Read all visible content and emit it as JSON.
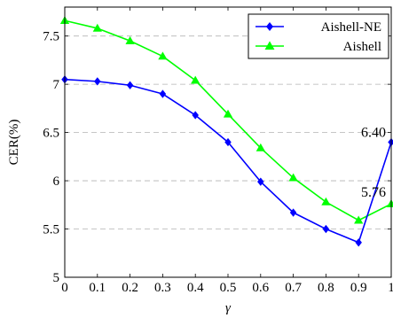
{
  "chart_data": {
    "type": "line",
    "x": [
      0,
      0.1,
      0.2,
      0.3,
      0.4,
      0.5,
      0.6,
      0.7,
      0.8,
      0.9,
      1
    ],
    "xlabel": "γ",
    "ylabel": "CER(%)",
    "xlim": [
      0,
      1
    ],
    "ylim": [
      5,
      7.8
    ],
    "xticks": [
      "0",
      "0.1",
      "0.2",
      "0.3",
      "0.4",
      "0.5",
      "0.6",
      "0.7",
      "0.8",
      "0.9",
      "1"
    ],
    "yticks": [
      "5",
      "5.5",
      "6",
      "6.5",
      "7",
      "7.5"
    ],
    "grid": "horizontal dashed",
    "legend_position": "top-right",
    "series": [
      {
        "name": "Aishell-NE",
        "color": "#0000ff",
        "marker": "diamond",
        "values": [
          7.05,
          7.03,
          6.99,
          6.9,
          6.68,
          6.4,
          5.99,
          5.67,
          5.5,
          5.36,
          6.4
        ]
      },
      {
        "name": "Aishell",
        "color": "#00ff00",
        "marker": "triangle",
        "values": [
          7.66,
          7.58,
          7.45,
          7.29,
          7.04,
          6.69,
          6.34,
          6.03,
          5.78,
          5.59,
          5.76
        ]
      }
    ],
    "annotations": [
      {
        "text": "6.40",
        "x": 1,
        "y": 6.4
      },
      {
        "text": "5.76",
        "x": 1,
        "y": 5.76
      }
    ]
  }
}
